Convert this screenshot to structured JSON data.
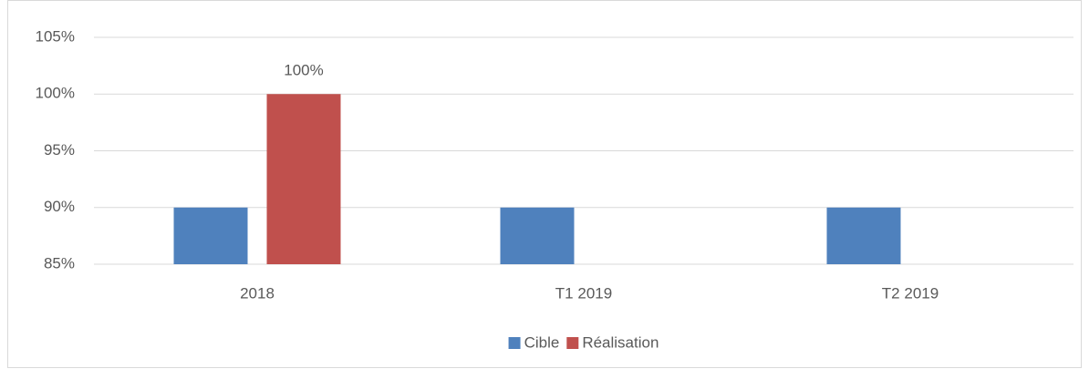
{
  "chart_data": {
    "type": "bar",
    "categories": [
      "2018",
      "T1 2019",
      "T2 2019"
    ],
    "series": [
      {
        "name": "Cible",
        "color": "#4f81bd",
        "values": [
          90,
          90,
          90
        ]
      },
      {
        "name": "Réalisation",
        "color": "#c0504d",
        "values": [
          100,
          null,
          null
        ],
        "value_labels": [
          "100%",
          null,
          null
        ]
      }
    ],
    "ylim": [
      85,
      105
    ],
    "yticks": [
      {
        "value": 85,
        "label": "85%"
      },
      {
        "value": 90,
        "label": "90%"
      },
      {
        "value": 95,
        "label": "95%"
      },
      {
        "value": 100,
        "label": "100%"
      },
      {
        "value": 105,
        "label": "105%"
      }
    ],
    "grid": true,
    "legend": "bottom"
  }
}
